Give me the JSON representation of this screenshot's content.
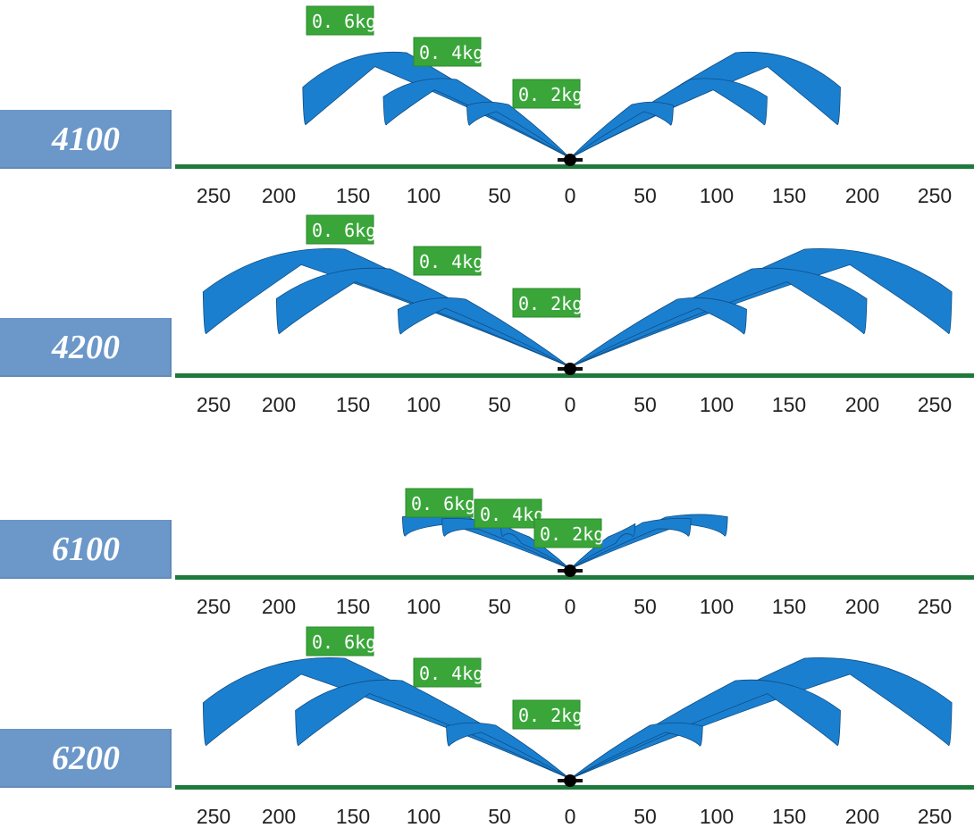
{
  "panels": [
    {
      "model": "4100",
      "sprays": [
        {
          "weight": "0. 6kg",
          "left_distance": 180,
          "right_distance": 182
        },
        {
          "weight": "0. 4kg",
          "left_distance": 125,
          "right_distance": 132
        },
        {
          "weight": "0. 2kg",
          "left_distance": 68,
          "right_distance": 68
        }
      ]
    },
    {
      "model": "4200",
      "sprays": [
        {
          "weight": "0. 6kg",
          "left_distance": 248,
          "right_distance": 258
        },
        {
          "weight": "0. 4kg",
          "left_distance": 198,
          "right_distance": 200
        },
        {
          "weight": "0. 2kg",
          "left_distance": 115,
          "right_distance": 118
        }
      ]
    },
    {
      "model": "6100",
      "sprays": [
        {
          "weight": "0. 6kg",
          "left_distance": 112,
          "right_distance": 105
        },
        {
          "weight": "0. 4kg",
          "left_distance": 85,
          "right_distance": 80
        },
        {
          "weight": "0. 2kg",
          "left_distance": 45,
          "right_distance": 42
        }
      ]
    },
    {
      "model": "6200",
      "sprays": [
        {
          "weight": "0. 6kg",
          "left_distance": 248,
          "right_distance": 258
        },
        {
          "weight": "0. 4kg",
          "left_distance": 185,
          "right_distance": 182
        },
        {
          "weight": "0. 2kg",
          "left_distance": 82,
          "right_distance": 88
        }
      ]
    }
  ],
  "axis_ticks": [
    "250",
    "200",
    "150",
    "100",
    "50",
    "0",
    "50",
    "100",
    "150",
    "200",
    "250"
  ],
  "colors": {
    "spray": "#1b7fd0",
    "ground": "#1e7a3c",
    "label_bg": "#6b97c9",
    "kg_bg": "#3aa63a"
  }
}
